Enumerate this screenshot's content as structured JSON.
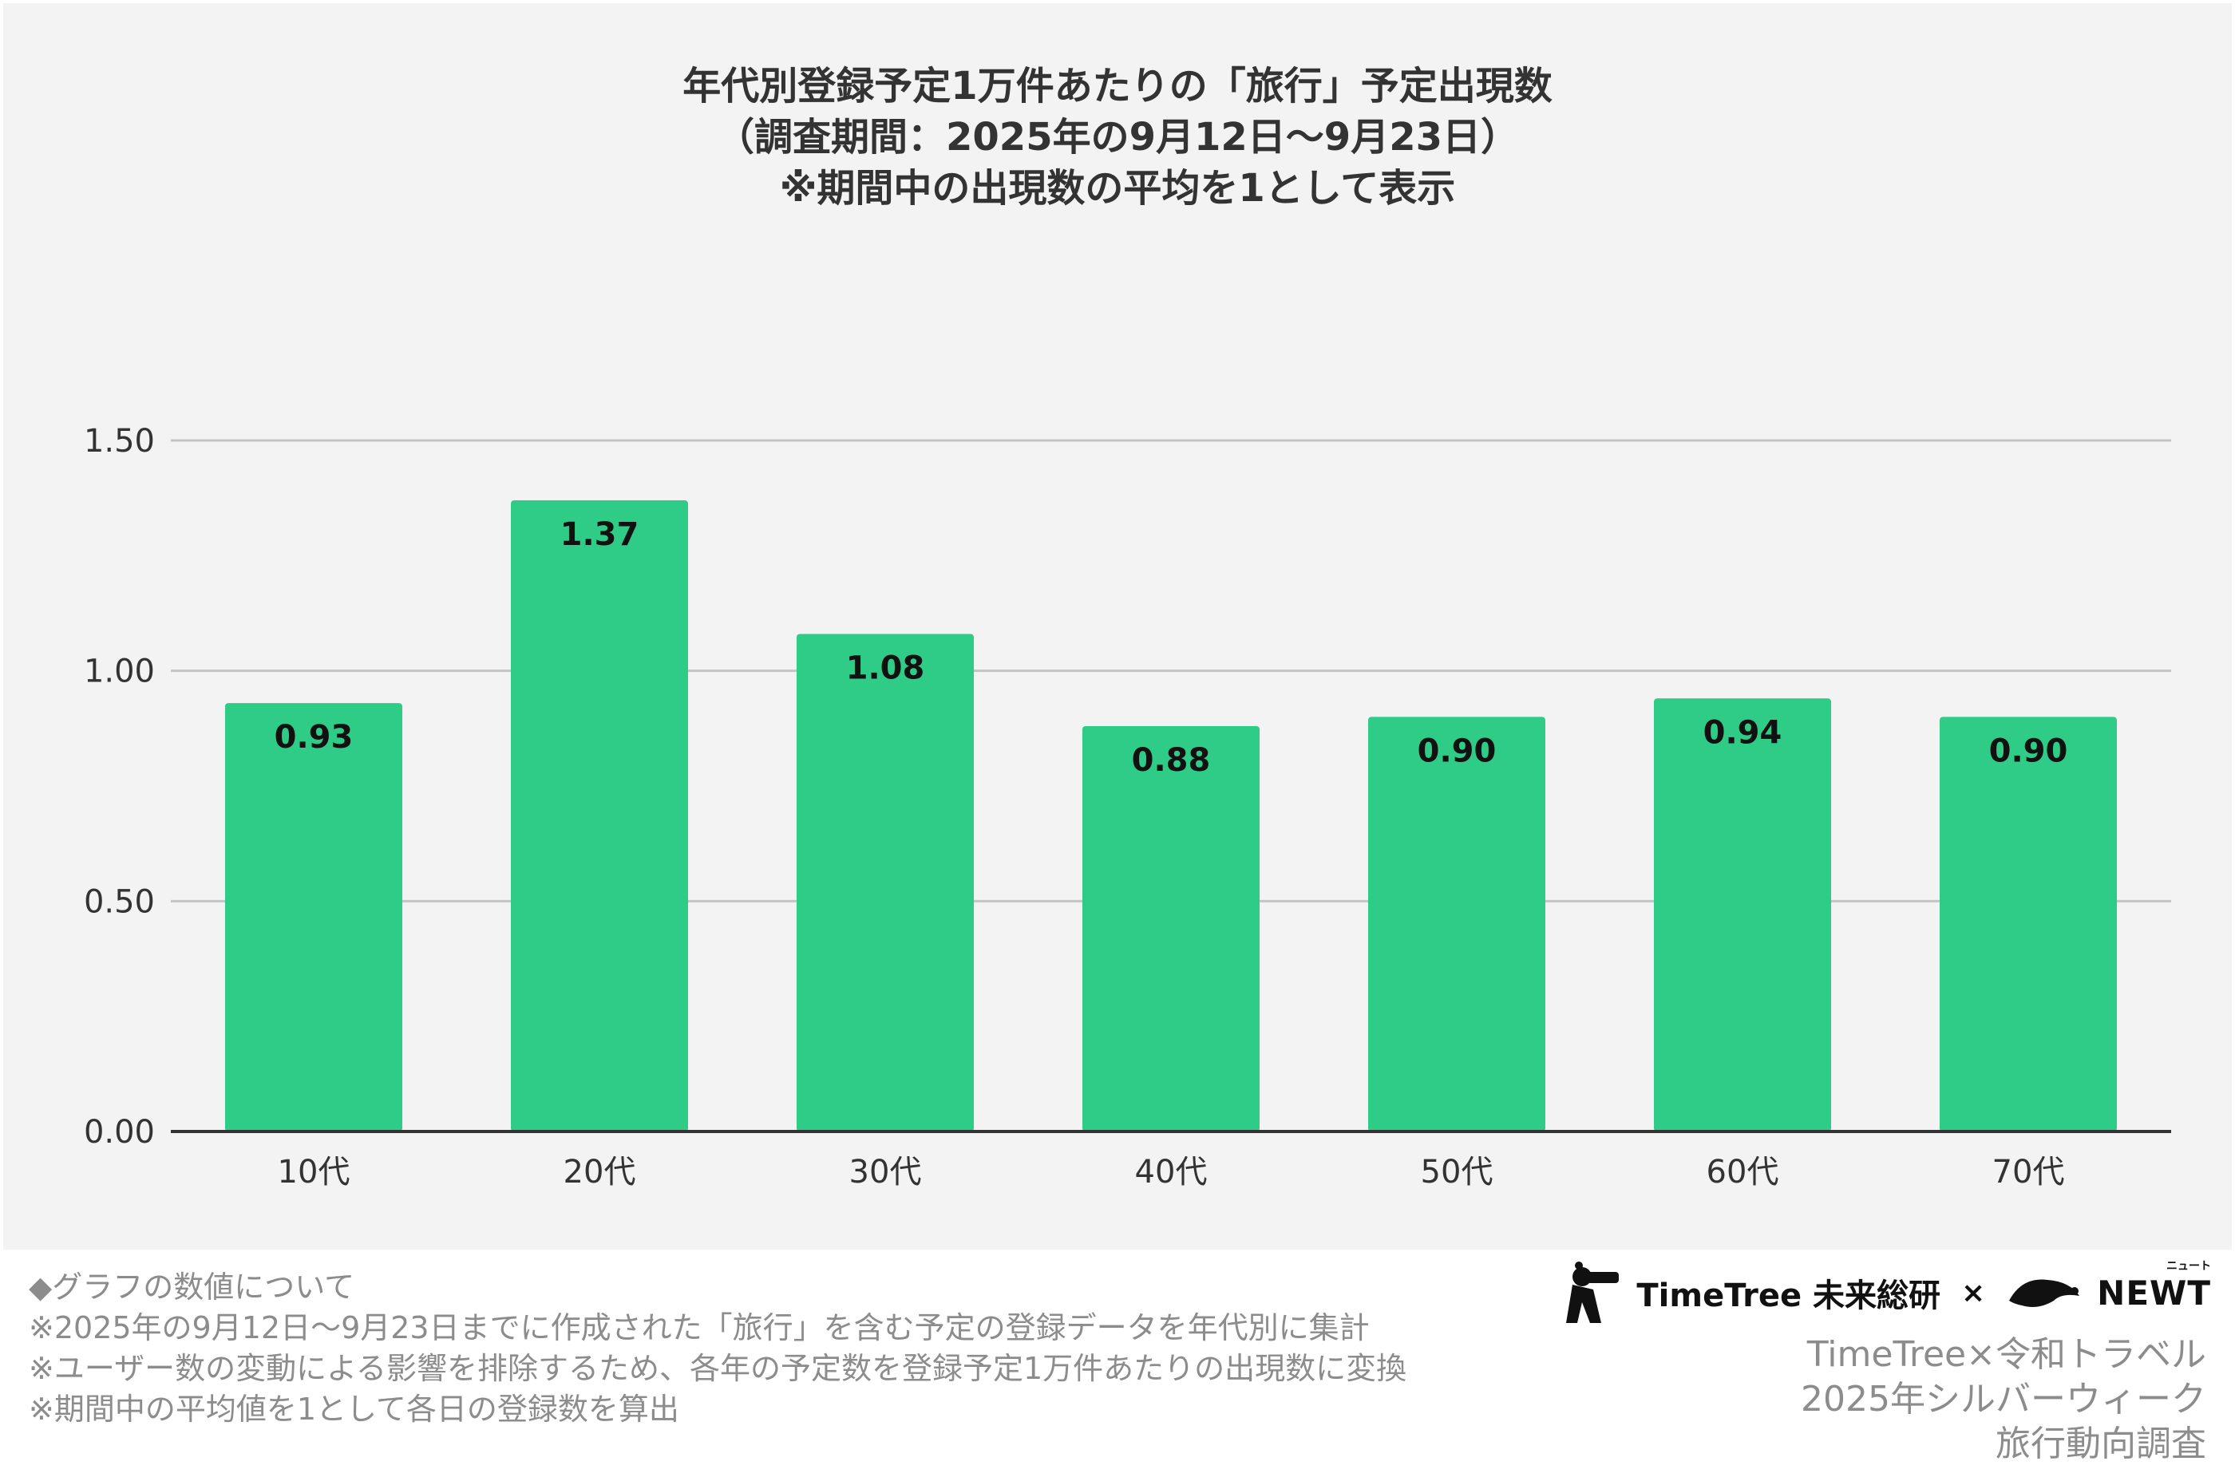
{
  "title_lines": [
    "年代別登録予定1万件あたりの「旅行」予定出現数",
    "（調査期間：2025年の9月12日〜9月23日）",
    "※期間中の出現数の平均を1として表示"
  ],
  "notes": [
    "◆グラフの数値について",
    "※2025年の9月12日〜9月23日までに作成された「旅行」を含む予定の登録データを年代別に集計",
    "※ユーザー数の変動による影響を排除するため、各年の予定数を登録予定1万件あたりの出現数に変換",
    "※期間中の平均値を1として各日の登録数を算出"
  ],
  "logos": {
    "timetree": "TimeTree 未来総研",
    "separator": "×",
    "newt": "NEWT",
    "newt_ruby": "ニュート"
  },
  "credit_lines": [
    "TimeTree×令和トラベル",
    "2025年シルバーウィーク",
    "旅行動向調査"
  ],
  "colors": {
    "bar": "#2ecc87",
    "panel": "#f3f3f3",
    "grid": "#c4c4c4",
    "axis": "#333333"
  },
  "chart_data": {
    "type": "bar",
    "categories": [
      "10代",
      "20代",
      "30代",
      "40代",
      "50代",
      "60代",
      "70代"
    ],
    "values": [
      0.93,
      1.37,
      1.08,
      0.88,
      0.9,
      0.94,
      0.9
    ],
    "data_labels": [
      "0.93",
      "1.37",
      "1.08",
      "0.88",
      "0.90",
      "0.94",
      "0.90"
    ],
    "y_ticks": [
      "0.00",
      "0.50",
      "1.00",
      "1.50"
    ],
    "y_tick_values": [
      0,
      0.5,
      1.0,
      1.5
    ],
    "ylim": [
      0,
      1.5
    ],
    "grid": true,
    "legend": "none"
  }
}
